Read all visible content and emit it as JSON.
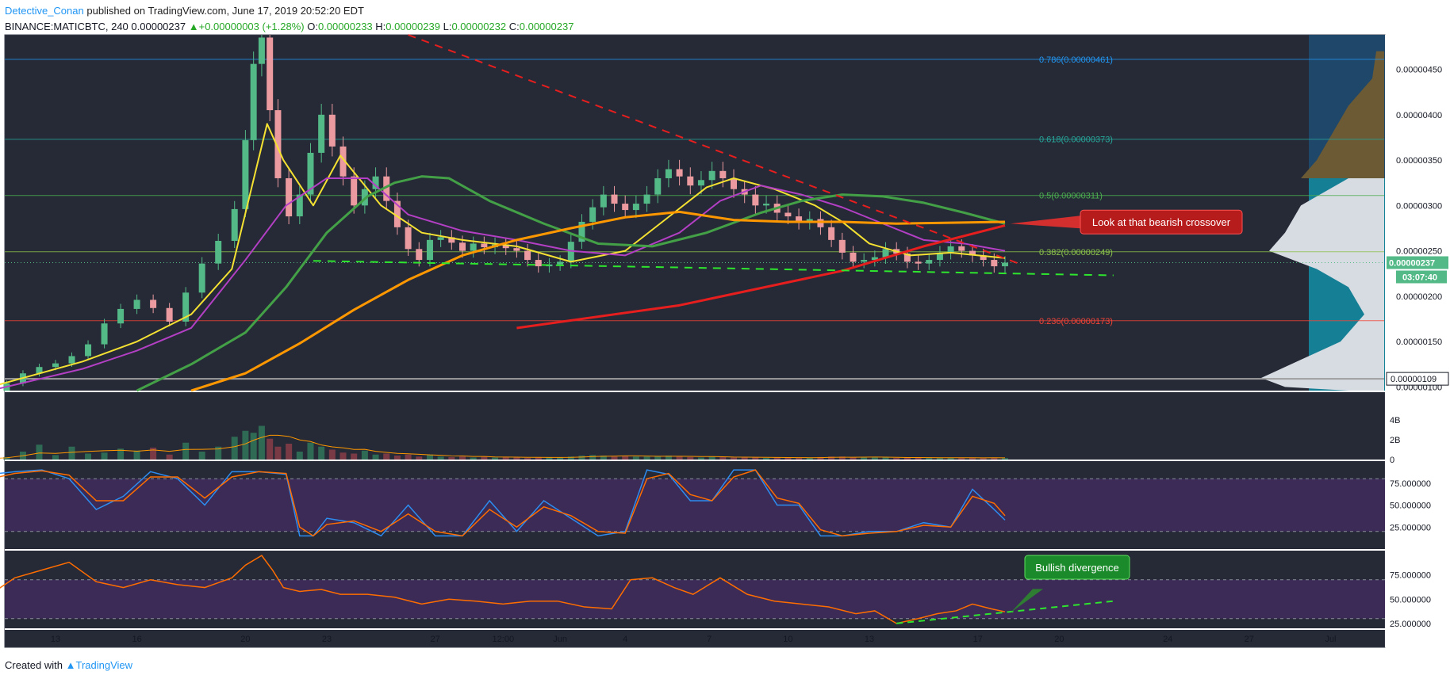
{
  "header": {
    "author": "Detective_Conan",
    "published": "published on TradingView.com, June 17, 2019 20:52:20 EDT",
    "symbol": "BINANCE:MATICBTC, 240",
    "last": "0.00000237",
    "arrow": "▲",
    "change": "+0.00000003 (+1.28%)",
    "o_label": "O:",
    "o": "0.00000233",
    "h_label": "H:",
    "h": "0.00000239",
    "l_label": "L:",
    "l": "0.00000232",
    "c_label": "C:",
    "c": "0.00000237"
  },
  "footer": {
    "created_with": "Created with",
    "brand": "TradingView"
  },
  "colors": {
    "panel_bg": "#262a36",
    "up": "#53b987",
    "down": "#eb9aa0",
    "ema_yellow": "#f5e132",
    "ema_purple": "#b33fc4",
    "ema_green": "#43a047",
    "ema_orange": "#ff9800",
    "ema_red": "#e61e1e",
    "osc_fill": "#3b2b56",
    "stoch_k": "#2d8cf0",
    "stoch_d": "#ff6d00",
    "rsi": "#ff6d00"
  },
  "chart_data": {
    "type": "candlestick",
    "price_axis": {
      "ylim": [
        9.6e-07,
        4.88e-06
      ],
      "ticks": [
        "0.00000450",
        "0.00000400",
        "0.00000350",
        "0.00000300",
        "0.00000250",
        "0.00000200",
        "0.00000150",
        "0.00000100"
      ],
      "current_price": "0.00000237",
      "countdown": "03:07:40",
      "marker_price": "0.00000109"
    },
    "x_axis": {
      "ticks": [
        "13",
        "16",
        "20",
        "23",
        "27",
        "12:00",
        "Jun",
        "4",
        "7",
        "10",
        "13",
        "17",
        "20",
        "24",
        "27",
        "Jul"
      ]
    },
    "fibonacci": [
      {
        "level": "0.786",
        "price": 4.61e-06,
        "label": "0.786(0.00000461)",
        "color": "#2196f3"
      },
      {
        "level": "0.618",
        "price": 3.73e-06,
        "label": "0.618(0.00000373)",
        "color": "#26a69a"
      },
      {
        "level": "0.5",
        "price": 3.11e-06,
        "label": "0.5(0.00000311)",
        "color": "#4caf50"
      },
      {
        "level": "0.382",
        "price": 2.49e-06,
        "label": "0.382(0.00000249)",
        "color": "#8bc34a"
      },
      {
        "level": "0.236",
        "price": 1.73e-06,
        "label": "0.236(0.00000173)",
        "color": "#f44336"
      }
    ],
    "candles": {
      "days": [
        10.6,
        11.2,
        11.8,
        12.4,
        13.0,
        13.6,
        14.2,
        14.8,
        15.4,
        16.0,
        16.6,
        17.2,
        17.8,
        18.4,
        19.0,
        19.6,
        20.0,
        20.3,
        20.6,
        20.9,
        21.2,
        21.6,
        22.0,
        22.4,
        22.8,
        23.2,
        23.6,
        24.0,
        24.4,
        24.8,
        25.2,
        25.6,
        26.0,
        26.4,
        26.8,
        27.2,
        27.6,
        28.0,
        28.4,
        28.8,
        29.2,
        29.6,
        30.0,
        30.4,
        30.8,
        31.2,
        31.6,
        32.0,
        32.4,
        32.8,
        33.2,
        33.6,
        34.0,
        34.4,
        34.8,
        35.2,
        35.6,
        36.0,
        36.4,
        36.8,
        37.2,
        37.6,
        38.0,
        38.4,
        38.8,
        39.2,
        39.6,
        40.0,
        40.4,
        40.8,
        41.2,
        41.6,
        42.0,
        42.4,
        42.8,
        43.2,
        43.6,
        44.0,
        44.4,
        44.8,
        45.2,
        45.6,
        46.0,
        46.4,
        46.8,
        47.2,
        47.6,
        48.0
      ],
      "close": [
        9.6e-07,
        1.04e-06,
        1.15e-06,
        1.22e-06,
        1.26e-06,
        1.34e-06,
        1.47e-06,
        1.7e-06,
        1.86e-06,
        1.96e-06,
        1.87e-06,
        1.72e-06,
        2.04e-06,
        2.36e-06,
        2.61e-06,
        2.96e-06,
        3.72e-06,
        4.56e-06,
        4.85e-06,
        4.05e-06,
        3.3e-06,
        2.88e-06,
        3.12e-06,
        3.58e-06,
        4e-06,
        3.65e-06,
        3.32e-06,
        3e-06,
        3.18e-06,
        3.32e-06,
        3.05e-06,
        2.76e-06,
        2.52e-06,
        2.4e-06,
        2.62e-06,
        2.65e-06,
        2.59e-06,
        2.5e-06,
        2.58e-06,
        2.54e-06,
        2.57e-06,
        2.53e-06,
        2.5e-06,
        2.4e-06,
        2.33e-06,
        2.35e-06,
        2.38e-06,
        2.6e-06,
        2.82e-06,
        2.98e-06,
        3.12e-06,
        3.02e-06,
        2.95e-06,
        3.02e-06,
        3.12e-06,
        3.3e-06,
        3.4e-06,
        3.32e-06,
        3.22e-06,
        3.28e-06,
        3.38e-06,
        3.3e-06,
        3.18e-06,
        3.12e-06,
        3e-06,
        3.02e-06,
        2.92e-06,
        2.88e-06,
        2.82e-06,
        2.85e-06,
        2.76e-06,
        2.62e-06,
        2.48e-06,
        2.38e-06,
        2.4e-06,
        2.43e-06,
        2.52e-06,
        2.47e-06,
        2.38e-06,
        2.36e-06,
        2.4e-06,
        2.48e-06,
        2.55e-06,
        2.5e-06,
        2.45e-06,
        2.4e-06,
        2.33e-06,
        2.37e-06
      ],
      "volume_b": [
        0.1,
        0.25,
        0.8,
        1.5,
        0.45,
        1.3,
        0.6,
        0.7,
        1.1,
        0.9,
        1.2,
        0.5,
        1.7,
        0.8,
        1.3,
        2.3,
        2.9,
        2.7,
        3.4,
        2.1,
        1.3,
        1.6,
        0.8,
        1.7,
        1.3,
        1.0,
        0.7,
        0.6,
        0.9,
        0.5,
        0.6,
        0.4,
        0.5,
        0.3,
        0.5,
        0.3,
        0.25,
        0.3,
        0.2,
        0.3,
        0.2,
        0.25,
        0.2,
        0.15,
        0.2,
        0.25,
        0.2,
        0.3,
        0.4,
        0.45,
        0.4,
        0.3,
        0.35,
        0.3,
        0.3,
        0.35,
        0.4,
        0.3,
        0.25,
        0.2,
        0.3,
        0.25,
        0.2,
        0.25,
        0.2,
        0.15,
        0.2,
        0.2,
        0.15,
        0.2,
        0.25,
        0.3,
        0.3,
        0.2,
        0.2,
        0.25,
        0.2,
        0.15,
        0.2,
        0.2,
        0.15,
        0.2,
        0.2,
        0.15,
        0.2,
        0.15,
        0.2,
        0.15
      ]
    },
    "moving_averages": [
      {
        "color_key": "ema_yellow",
        "x": [
          10.6,
          14.0,
          16.0,
          18.0,
          19.5,
          20.8,
          21.4,
          22.5,
          23.5,
          25.0,
          26.5,
          28.0,
          30.0,
          32.0,
          34.0,
          35.5,
          37.0,
          38.0,
          39.5,
          41.0,
          42.0,
          43.0,
          44.5,
          46.0,
          48.0
        ],
        "y": [
          1e-06,
          1.28e-06,
          1.5e-06,
          1.8e-06,
          2.3e-06,
          3.9e-06,
          3.5e-06,
          3e-06,
          3.55e-06,
          3e-06,
          2.7e-06,
          2.62e-06,
          2.55e-06,
          2.38e-06,
          2.5e-06,
          2.85e-06,
          3.2e-06,
          3.3e-06,
          3.18e-06,
          3e-06,
          2.82e-06,
          2.58e-06,
          2.45e-06,
          2.48e-06,
          2.42e-06
        ]
      },
      {
        "color_key": "ema_purple",
        "x": [
          10.6,
          14.0,
          16.0,
          18.0,
          20.0,
          21.5,
          23.0,
          24.5,
          26.0,
          28.0,
          30.0,
          32.0,
          34.0,
          36.0,
          37.5,
          39.0,
          40.5,
          42.0,
          43.5,
          45.0,
          46.5,
          48.0
        ],
        "y": [
          9.6e-07,
          1.2e-06,
          1.4e-06,
          1.65e-06,
          2.4e-06,
          3e-06,
          3.3e-06,
          3.3e-06,
          2.9e-06,
          2.72e-06,
          2.62e-06,
          2.5e-06,
          2.45e-06,
          2.7e-06,
          3.05e-06,
          3.22e-06,
          3.12e-06,
          2.98e-06,
          2.8e-06,
          2.62e-06,
          2.58e-06,
          2.5e-06
        ]
      },
      {
        "color_key": "ema_green",
        "x": [
          16.0,
          18.0,
          20.0,
          21.5,
          23.0,
          24.5,
          25.5,
          26.5,
          27.5,
          29.0,
          31.0,
          33.0,
          35.0,
          37.0,
          39.0,
          40.5,
          42.0,
          43.5,
          45.0,
          46.5,
          48.0
        ],
        "y": [
          9.6e-07,
          1.25e-06,
          1.6e-06,
          2.1e-06,
          2.7e-06,
          3.1e-06,
          3.25e-06,
          3.32e-06,
          3.3e-06,
          3.05e-06,
          2.8e-06,
          2.58e-06,
          2.55e-06,
          2.7e-06,
          2.92e-06,
          3.05e-06,
          3.12e-06,
          3.1e-06,
          3.03e-06,
          2.92e-06,
          2.8e-06
        ]
      },
      {
        "color_key": "ema_orange",
        "x": [
          18.0,
          20.0,
          22.0,
          24.0,
          26.0,
          28.0,
          30.0,
          32.0,
          34.0,
          36.0,
          38.0,
          40.0,
          42.0,
          44.0,
          46.0,
          48.0
        ],
        "y": [
          9.6e-07,
          1.15e-06,
          1.48e-06,
          1.85e-06,
          2.18e-06,
          2.45e-06,
          2.62e-06,
          2.75e-06,
          2.87e-06,
          2.93e-06,
          2.84e-06,
          2.82e-06,
          2.82e-06,
          2.8e-06,
          2.81e-06,
          2.82e-06
        ]
      },
      {
        "color_key": "ema_red",
        "x": [
          30.0,
          36.0,
          42.0,
          45.0,
          48.0
        ],
        "y": [
          1.65e-06,
          1.9e-06,
          2.28e-06,
          2.55e-06,
          2.78e-06
        ]
      }
    ],
    "trendlines": [
      {
        "name": "resistance",
        "x": [
          26.0,
          48.5
        ],
        "y": [
          4.88e-06,
          2.36e-06
        ],
        "color": "#e61e1e",
        "dashed": true
      },
      {
        "name": "support",
        "x": [
          22.5,
          52.0
        ],
        "y": [
          2.39e-06,
          2.23e-06
        ],
        "color": "#2ee62e",
        "dashed": true
      }
    ],
    "annotations": [
      {
        "text": "Look at that bearish crossover",
        "x": 48.2,
        "y": 2.8e-06
      },
      {
        "text": "Bullish divergence",
        "x": 48.2,
        "value": 36
      }
    ],
    "volume_axis": {
      "ticks": [
        "4B",
        "2B",
        "0"
      ],
      "ylim": [
        0,
        4
      ]
    },
    "stoch_rsi": {
      "ticks": [
        "75.000000",
        "50.000000",
        "25.000000"
      ],
      "ylim": [
        0,
        100
      ],
      "bands": [
        80,
        20
      ],
      "x": [
        10.6,
        11.5,
        12.5,
        13.5,
        14.5,
        15.5,
        16.5,
        17.5,
        18.5,
        19.5,
        20.5,
        21.5,
        22.0,
        22.5,
        23.0,
        24.0,
        25.0,
        26.0,
        27.0,
        28.0,
        29.0,
        30.0,
        31.0,
        32.0,
        33.0,
        34.0,
        34.8,
        35.6,
        36.4,
        37.2,
        38.0,
        38.8,
        39.6,
        40.4,
        41.2,
        42.0,
        43.0,
        44.0,
        45.0,
        46.0,
        46.8,
        47.6,
        48.0
      ],
      "k": [
        85,
        88,
        90,
        80,
        45,
        60,
        88,
        80,
        50,
        88,
        88,
        85,
        15,
        15,
        35,
        30,
        15,
        50,
        15,
        15,
        55,
        20,
        55,
        35,
        15,
        20,
        90,
        85,
        55,
        55,
        90,
        90,
        50,
        50,
        15,
        15,
        20,
        20,
        30,
        25,
        68,
        45,
        33
      ],
      "d": [
        80,
        86,
        89,
        84,
        55,
        55,
        82,
        82,
        58,
        82,
        88,
        86,
        25,
        15,
        28,
        32,
        20,
        40,
        20,
        15,
        45,
        25,
        48,
        38,
        20,
        18,
        80,
        86,
        62,
        55,
        82,
        90,
        58,
        52,
        22,
        15,
        18,
        20,
        27,
        25,
        60,
        52,
        38
      ]
    },
    "rsi": {
      "ticks": [
        "75.000000",
        "50.000000",
        "25.000000"
      ],
      "ylim": [
        20,
        100
      ],
      "bands": [
        70,
        30
      ],
      "x": [
        10.6,
        11.5,
        12.5,
        13.5,
        14.5,
        15.5,
        16.5,
        17.5,
        18.5,
        19.5,
        20.0,
        20.6,
        21.0,
        21.4,
        22.0,
        22.8,
        23.5,
        24.5,
        25.5,
        26.5,
        27.5,
        28.5,
        29.5,
        30.5,
        31.5,
        32.5,
        33.5,
        34.2,
        35.0,
        35.8,
        36.5,
        37.5,
        38.5,
        39.5,
        40.5,
        41.5,
        42.5,
        43.2,
        44.0,
        44.8,
        45.5,
        46.2,
        46.8,
        47.5,
        48.0
      ],
      "y": [
        55,
        72,
        80,
        88,
        68,
        62,
        70,
        65,
        62,
        72,
        85,
        95,
        80,
        62,
        58,
        60,
        55,
        55,
        52,
        45,
        50,
        48,
        45,
        48,
        48,
        42,
        40,
        70,
        72,
        62,
        55,
        72,
        55,
        48,
        45,
        42,
        35,
        38,
        25,
        30,
        35,
        38,
        45,
        40,
        37
      ]
    },
    "divergence_line": {
      "x": [
        44.0,
        52.0
      ],
      "value": [
        25,
        48
      ]
    }
  }
}
